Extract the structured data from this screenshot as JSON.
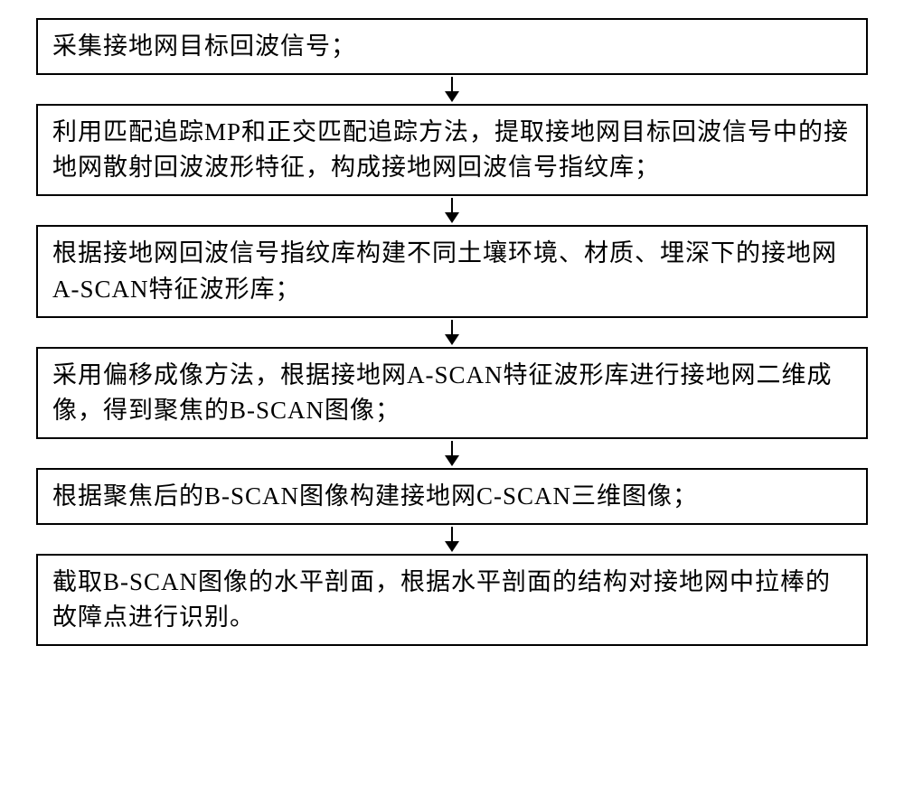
{
  "flowchart": {
    "type": "flowchart",
    "direction": "vertical",
    "background_color": "#ffffff",
    "box_border_color": "#000000",
    "box_border_width": 2,
    "text_color": "#000000",
    "font_family": "KaiTi",
    "font_size": 27,
    "arrow_color": "#000000",
    "steps": [
      {
        "id": "step1",
        "text": "采集接地网目标回波信号；"
      },
      {
        "id": "step2",
        "text": "利用匹配追踪MP和正交匹配追踪方法，提取接地网目标回波信号中的接地网散射回波波形特征，构成接地网回波信号指纹库；"
      },
      {
        "id": "step3",
        "text": "根据接地网回波信号指纹库构建不同土壤环境、材质、埋深下的接地网A-SCAN特征波形库；"
      },
      {
        "id": "step4",
        "text": "采用偏移成像方法，根据接地网A-SCAN特征波形库进行接地网二维成像，得到聚焦的B-SCAN图像；"
      },
      {
        "id": "step5",
        "text": "根据聚焦后的B-SCAN图像构建接地网C-SCAN三维图像；"
      },
      {
        "id": "step6",
        "text": "截取B-SCAN图像的水平剖面，根据水平剖面的结构对接地网中拉棒的故障点进行识别。"
      }
    ]
  }
}
